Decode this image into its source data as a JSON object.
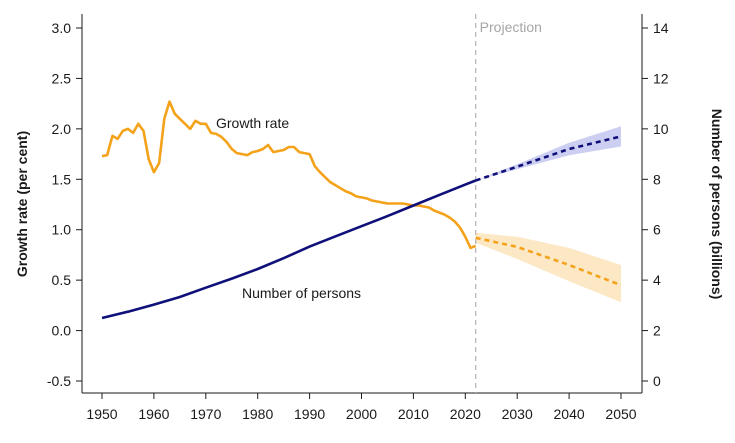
{
  "chart_data": {
    "type": "line",
    "x_range": [
      1950,
      2050
    ],
    "x_ticks": [
      1950,
      1960,
      1970,
      1980,
      1990,
      2000,
      2010,
      2020,
      2030,
      2040,
      2050
    ],
    "y_left": {
      "label": "Growth rate (per cent)",
      "range": [
        -0.5,
        3.0
      ],
      "ticks": [
        -0.5,
        0.0,
        0.5,
        1.0,
        1.5,
        2.0,
        2.5,
        3.0
      ],
      "tick_labels": [
        "-0.5",
        "0.0",
        "0.5",
        "1.0",
        "1.5",
        "2.0",
        "2.5",
        "3.0"
      ]
    },
    "y_right": {
      "label": "Number of persons (billions)",
      "range": [
        0,
        14
      ],
      "ticks": [
        0,
        2,
        4,
        6,
        8,
        10,
        12,
        14
      ],
      "tick_labels": [
        "0",
        "2",
        "4",
        "6",
        "8",
        "10",
        "12",
        "14"
      ]
    },
    "projection": {
      "x": 2022,
      "label": "Projection"
    },
    "series": [
      {
        "name": "Growth rate",
        "axis": "left",
        "color": "#f5a21b",
        "band_color": "#fde6c0",
        "x": [
          1950,
          1951,
          1952,
          1953,
          1954,
          1955,
          1956,
          1957,
          1958,
          1959,
          1960,
          1961,
          1962,
          1963,
          1964,
          1965,
          1966,
          1967,
          1968,
          1969,
          1970,
          1971,
          1972,
          1973,
          1974,
          1975,
          1976,
          1977,
          1978,
          1979,
          1980,
          1981,
          1982,
          1983,
          1984,
          1985,
          1986,
          1987,
          1988,
          1989,
          1990,
          1991,
          1992,
          1993,
          1994,
          1995,
          1996,
          1997,
          1998,
          1999,
          2000,
          2001,
          2002,
          2003,
          2004,
          2005,
          2006,
          2007,
          2008,
          2009,
          2010,
          2011,
          2012,
          2013,
          2014,
          2015,
          2016,
          2017,
          2018,
          2019,
          2020,
          2021,
          2022
        ],
        "values": [
          1.73,
          1.74,
          1.93,
          1.9,
          1.98,
          2.0,
          1.96,
          2.05,
          1.98,
          1.7,
          1.57,
          1.66,
          2.1,
          2.27,
          2.15,
          2.1,
          2.05,
          2.0,
          2.08,
          2.05,
          2.05,
          1.96,
          1.95,
          1.92,
          1.87,
          1.8,
          1.76,
          1.75,
          1.74,
          1.77,
          1.78,
          1.8,
          1.84,
          1.77,
          1.78,
          1.79,
          1.82,
          1.82,
          1.77,
          1.76,
          1.75,
          1.63,
          1.57,
          1.52,
          1.47,
          1.44,
          1.41,
          1.38,
          1.36,
          1.33,
          1.32,
          1.31,
          1.29,
          1.28,
          1.27,
          1.26,
          1.26,
          1.26,
          1.26,
          1.25,
          1.24,
          1.24,
          1.23,
          1.22,
          1.19,
          1.17,
          1.15,
          1.12,
          1.08,
          1.02,
          0.93,
          0.82,
          0.84
        ],
        "projection": {
          "x": [
            2022,
            2030,
            2040,
            2050
          ],
          "values": [
            0.92,
            0.83,
            0.65,
            0.45
          ],
          "lower": [
            0.87,
            0.71,
            0.49,
            0.28
          ],
          "upper": [
            0.97,
            0.93,
            0.82,
            0.65
          ]
        }
      },
      {
        "name": "Number of persons",
        "axis": "right",
        "color": "#10107a",
        "band_color": "#c7caf0",
        "x": [
          1950,
          1955,
          1960,
          1965,
          1970,
          1975,
          1980,
          1985,
          1990,
          1995,
          2000,
          2005,
          2010,
          2015,
          2020,
          2022
        ],
        "values": [
          2.5,
          2.75,
          3.03,
          3.33,
          3.7,
          4.06,
          4.44,
          4.87,
          5.33,
          5.74,
          6.14,
          6.54,
          6.96,
          7.38,
          7.79,
          7.95
        ],
        "projection": {
          "x": [
            2022,
            2030,
            2040,
            2050
          ],
          "values": [
            7.95,
            8.5,
            9.2,
            9.7
          ],
          "lower": [
            7.95,
            8.4,
            8.95,
            9.3
          ],
          "upper": [
            7.95,
            8.6,
            9.45,
            10.1
          ]
        }
      }
    ],
    "annotations": [
      {
        "text": "Growth rate",
        "series": "Growth rate"
      },
      {
        "text": "Number of persons",
        "series": "Number of persons"
      }
    ]
  }
}
